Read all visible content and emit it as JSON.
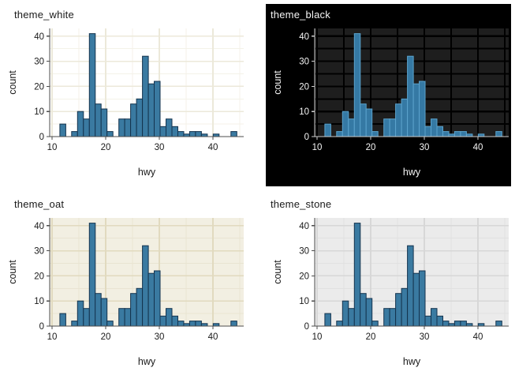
{
  "figure": {
    "background": "#ffffff",
    "layout": "2x2 grid of themed histograms"
  },
  "chart_data": [
    {
      "type": "histogram",
      "title": "theme_white",
      "xlabel": "hwy",
      "ylabel": "count",
      "bin_width": 1.1,
      "bin_centers": [
        12,
        13.1,
        14.2,
        15.3,
        16.4,
        17.5,
        18.6,
        19.7,
        20.8,
        21.9,
        23,
        24.1,
        25.2,
        26.3,
        27.4,
        28.5,
        29.6,
        30.7,
        31.8,
        32.9,
        34,
        35.1,
        36.2,
        37.3,
        38.4,
        39.5,
        40.6,
        41.7,
        42.8,
        43.9
      ],
      "counts": [
        5,
        0,
        2,
        10,
        7,
        41,
        13,
        11,
        2,
        0,
        7,
        7,
        13,
        15,
        32,
        21,
        22,
        4,
        7,
        4,
        2,
        1,
        2,
        2,
        1,
        0,
        1,
        0,
        0,
        2
      ],
      "total_count": 234,
      "xlim": [
        9.5,
        46
      ],
      "ylim": [
        0,
        43
      ],
      "x_ticks": [
        10,
        20,
        30,
        40
      ],
      "x_tick_labels": [
        "10",
        "20",
        "30",
        "40"
      ],
      "y_ticks": [
        0,
        10,
        20,
        30,
        40
      ],
      "y_tick_labels": [
        "0",
        "10",
        "20",
        "30",
        "40"
      ],
      "x_gridlines_major": [
        10,
        20,
        30,
        40
      ],
      "x_gridlines_minor": [
        15,
        25,
        35,
        45
      ],
      "y_gridlines_major": [
        10,
        20,
        30,
        40
      ],
      "y_gridlines_minor": [
        5,
        15,
        25,
        35
      ],
      "theme": {
        "outer_bg": "#ffffff",
        "panel_bg": "#ffffff",
        "grid_major": "#ece9da",
        "grid_minor": "#f4f2e8",
        "grid_width_major": 1.6,
        "grid_width_minor": 1,
        "bar_fill": "#3a7aa1",
        "bar_stroke": "#14334e",
        "text": "#1a1a1a",
        "axis": "#4d4d4d"
      }
    },
    {
      "type": "histogram",
      "title": "theme_black",
      "xlabel": "hwy",
      "ylabel": "count",
      "bin_width": 1.1,
      "bin_centers": [
        12,
        13.1,
        14.2,
        15.3,
        16.4,
        17.5,
        18.6,
        19.7,
        20.8,
        21.9,
        23,
        24.1,
        25.2,
        26.3,
        27.4,
        28.5,
        29.6,
        30.7,
        31.8,
        32.9,
        34,
        35.1,
        36.2,
        37.3,
        38.4,
        39.5,
        40.6,
        41.7,
        42.8,
        43.9
      ],
      "counts": [
        5,
        0,
        2,
        10,
        7,
        41,
        13,
        11,
        2,
        0,
        7,
        7,
        13,
        15,
        32,
        21,
        22,
        4,
        7,
        4,
        2,
        1,
        2,
        2,
        1,
        0,
        1,
        0,
        0,
        2
      ],
      "total_count": 234,
      "xlim": [
        9.5,
        46
      ],
      "ylim": [
        0,
        43
      ],
      "x_ticks": [
        10,
        20,
        30,
        40
      ],
      "x_tick_labels": [
        "10",
        "20",
        "30",
        "40"
      ],
      "y_ticks": [
        0,
        10,
        20,
        30,
        40
      ],
      "y_tick_labels": [
        "0",
        "10",
        "20",
        "30",
        "40"
      ],
      "x_gridlines_major": [
        10,
        20,
        30,
        40
      ],
      "x_gridlines_minor": [
        15,
        25,
        35,
        45
      ],
      "y_gridlines_major": [
        10,
        20,
        30,
        40
      ],
      "y_gridlines_minor": [
        5,
        15,
        25,
        35
      ],
      "theme": {
        "outer_bg": "#000000",
        "panel_bg": "#1e1e1e",
        "grid_major": "#000000",
        "grid_minor": "#000000",
        "grid_width_major": 2.2,
        "grid_width_minor": 2,
        "bar_fill": "#3579a4",
        "bar_stroke": "#5ba3cd",
        "text": "#f5f5f5",
        "axis": "#cccccc"
      }
    },
    {
      "type": "histogram",
      "title": "theme_oat",
      "xlabel": "hwy",
      "ylabel": "count",
      "bin_width": 1.1,
      "bin_centers": [
        12,
        13.1,
        14.2,
        15.3,
        16.4,
        17.5,
        18.6,
        19.7,
        20.8,
        21.9,
        23,
        24.1,
        25.2,
        26.3,
        27.4,
        28.5,
        29.6,
        30.7,
        31.8,
        32.9,
        34,
        35.1,
        36.2,
        37.3,
        38.4,
        39.5,
        40.6,
        41.7,
        42.8,
        43.9
      ],
      "counts": [
        5,
        0,
        2,
        10,
        7,
        41,
        13,
        11,
        2,
        0,
        7,
        7,
        13,
        15,
        32,
        21,
        22,
        4,
        7,
        4,
        2,
        1,
        2,
        2,
        1,
        0,
        1,
        0,
        0,
        2
      ],
      "total_count": 234,
      "xlim": [
        9.5,
        46
      ],
      "ylim": [
        0,
        43
      ],
      "x_ticks": [
        10,
        20,
        30,
        40
      ],
      "x_tick_labels": [
        "10",
        "20",
        "30",
        "40"
      ],
      "y_ticks": [
        0,
        10,
        20,
        30,
        40
      ],
      "y_tick_labels": [
        "0",
        "10",
        "20",
        "30",
        "40"
      ],
      "x_gridlines_major": [
        10,
        20,
        30,
        40
      ],
      "x_gridlines_minor": [
        15,
        25,
        35,
        45
      ],
      "y_gridlines_major": [
        10,
        20,
        30,
        40
      ],
      "y_gridlines_minor": [
        5,
        15,
        25,
        35
      ],
      "theme": {
        "outer_bg": "#ffffff",
        "panel_bg": "#f2efe2",
        "grid_major": "#e1dabf",
        "grid_minor": "#e9e4d2",
        "grid_width_major": 1.6,
        "grid_width_minor": 1,
        "bar_fill": "#3a7aa1",
        "bar_stroke": "#14334e",
        "text": "#1a1a1a",
        "axis": "#4d4d4d"
      }
    },
    {
      "type": "histogram",
      "title": "theme_stone",
      "xlabel": "hwy",
      "ylabel": "count",
      "bin_width": 1.1,
      "bin_centers": [
        12,
        13.1,
        14.2,
        15.3,
        16.4,
        17.5,
        18.6,
        19.7,
        20.8,
        21.9,
        23,
        24.1,
        25.2,
        26.3,
        27.4,
        28.5,
        29.6,
        30.7,
        31.8,
        32.9,
        34,
        35.1,
        36.2,
        37.3,
        38.4,
        39.5,
        40.6,
        41.7,
        42.8,
        43.9
      ],
      "counts": [
        5,
        0,
        2,
        10,
        7,
        41,
        13,
        11,
        2,
        0,
        7,
        7,
        13,
        15,
        32,
        21,
        22,
        4,
        7,
        4,
        2,
        1,
        2,
        2,
        1,
        0,
        1,
        0,
        0,
        2
      ],
      "total_count": 234,
      "xlim": [
        9.5,
        46
      ],
      "ylim": [
        0,
        43
      ],
      "x_ticks": [
        10,
        20,
        30,
        40
      ],
      "x_tick_labels": [
        "10",
        "20",
        "30",
        "40"
      ],
      "y_ticks": [
        0,
        10,
        20,
        30,
        40
      ],
      "y_tick_labels": [
        "0",
        "10",
        "20",
        "30",
        "40"
      ],
      "x_gridlines_major": [
        10,
        20,
        30,
        40
      ],
      "x_gridlines_minor": [
        15,
        25,
        35,
        45
      ],
      "y_gridlines_major": [
        10,
        20,
        30,
        40
      ],
      "y_gridlines_minor": [
        5,
        15,
        25,
        35
      ],
      "theme": {
        "outer_bg": "#ffffff",
        "panel_bg": "#ebebeb",
        "grid_major": "#d7d7d7",
        "grid_minor": "#e1e1e1",
        "grid_width_major": 1.6,
        "grid_width_minor": 1,
        "bar_fill": "#3a7aa1",
        "bar_stroke": "#14334e",
        "text": "#1a1a1a",
        "axis": "#4d4d4d"
      }
    }
  ]
}
